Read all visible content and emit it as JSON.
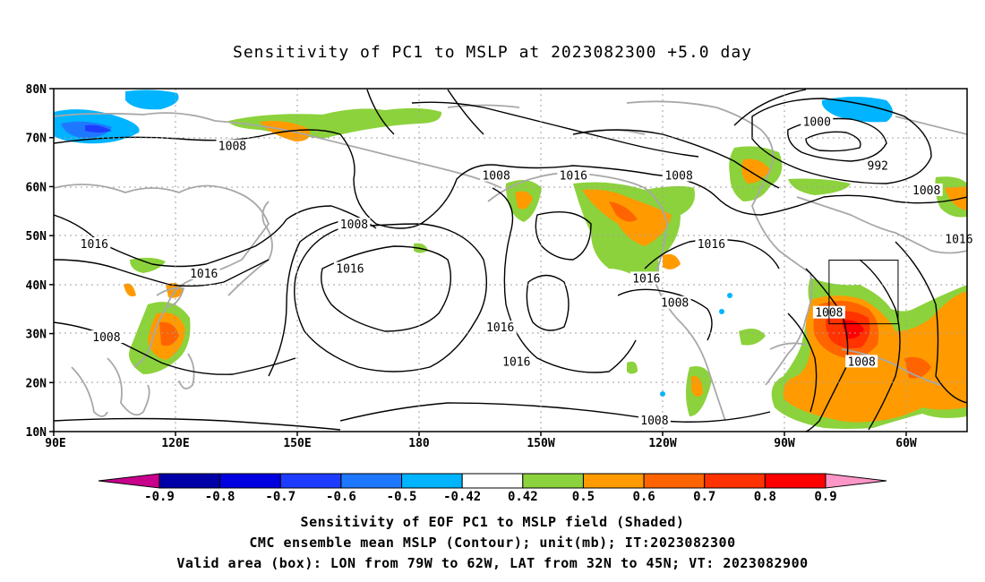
{
  "title": "Sensitivity of PC1 to MSLP at 2023082300 +5.0 day",
  "map": {
    "lat_labels": [
      "80N",
      "70N",
      "60N",
      "50N",
      "40N",
      "30N",
      "20N",
      "10N"
    ],
    "lon_labels": [
      "90E",
      "120E",
      "150E",
      "180",
      "150W",
      "120W",
      "90W",
      "60W"
    ],
    "contour_labels": [
      {
        "text": "1008",
        "lon": 134,
        "lat": 68
      },
      {
        "text": "1016",
        "lon": 100,
        "lat": 48
      },
      {
        "text": "1016",
        "lon": 127,
        "lat": 42
      },
      {
        "text": "1008",
        "lon": 103,
        "lat": 29
      },
      {
        "text": "1008",
        "lon": 164,
        "lat": 52
      },
      {
        "text": "1016",
        "lon": 163,
        "lat": 43
      },
      {
        "text": "1016",
        "lon": 200,
        "lat": 31
      },
      {
        "text": "1016",
        "lon": 204,
        "lat": 24
      },
      {
        "text": "1008",
        "lon": 199,
        "lat": 62
      },
      {
        "text": "1016",
        "lon": 218,
        "lat": 62
      },
      {
        "text": "1008",
        "lon": 244,
        "lat": 62
      },
      {
        "text": "1016",
        "lon": 252,
        "lat": 48
      },
      {
        "text": "1016",
        "lon": 236,
        "lat": 41
      },
      {
        "text": "1008",
        "lon": 243,
        "lat": 36
      },
      {
        "text": "1008",
        "lon": 238,
        "lat": 12
      },
      {
        "text": "1000",
        "lon": 278,
        "lat": 73
      },
      {
        "text": "992",
        "lon": 293,
        "lat": 64
      },
      {
        "text": "1008",
        "lon": 305,
        "lat": 59
      },
      {
        "text": "1016",
        "lon": 313,
        "lat": 49
      },
      {
        "text": "1008",
        "lon": 281,
        "lat": 34
      },
      {
        "text": "1008",
        "lon": 289,
        "lat": 24
      }
    ],
    "valid_box": {
      "lon_min": 281,
      "lon_max": 298,
      "lat_min": 32,
      "lat_max": 45
    }
  },
  "colorbar": {
    "labels": [
      "-0.9",
      "-0.8",
      "-0.7",
      "-0.6",
      "-0.5",
      "-0.42",
      "0.42",
      "0.5",
      "0.6",
      "0.7",
      "0.8",
      "0.9"
    ],
    "colors": [
      "#0000a8",
      "#0000e0",
      "#1e3cff",
      "#1e78ff",
      "#00b4ff",
      "#ffffff",
      "#8cd23c",
      "#ff9b00",
      "#ff6400",
      "#ff3200",
      "#ff0000"
    ],
    "under_color": "#c8008c",
    "over_color": "#ff96c8"
  },
  "captions": {
    "line1": "Sensitivity of EOF PC1 to MSLP field (Shaded)",
    "line2": "CMC ensemble mean MSLP (Contour); unit(mb); IT:2023082300",
    "line3": "Valid area (box): LON from 79W to 62W, LAT from 32N to 45N; VT: 2023082900"
  }
}
